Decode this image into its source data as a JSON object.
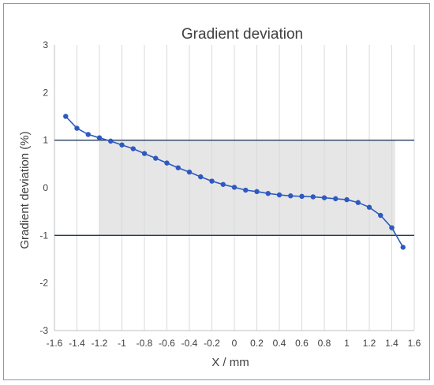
{
  "chart_data": {
    "type": "line",
    "title": "Gradient deviation",
    "xlabel": "X / mm",
    "ylabel": "Gradient deviation (%)",
    "xlim": [
      -1.6,
      1.6
    ],
    "ylim": [
      -3,
      3
    ],
    "x_ticks": [
      "-1.6",
      "-1.4",
      "-1.2",
      "-1",
      "-0.8",
      "-0.6",
      "-0.4",
      "-0.2",
      "0",
      "0.2",
      "0.4",
      "0.6",
      "0.8",
      "1",
      "1.2",
      "1.4",
      "1.6"
    ],
    "y_ticks": [
      "-3",
      "-2",
      "-1",
      "0",
      "1",
      "2",
      "3"
    ],
    "grid": "vertical",
    "legend": "none",
    "shaded_region": {
      "x": [
        -1.2,
        1.43
      ],
      "y": [
        -1,
        1
      ]
    },
    "reference_lines_y": [
      1,
      -1
    ],
    "series": [
      {
        "color": "#2e59c0",
        "x": [
          -1.5,
          -1.4,
          -1.3,
          -1.2,
          -1.1,
          -1.0,
          -0.9,
          -0.8,
          -0.7,
          -0.6,
          -0.5,
          -0.4,
          -0.3,
          -0.2,
          -0.1,
          0.0,
          0.1,
          0.2,
          0.3,
          0.4,
          0.5,
          0.6,
          0.7,
          0.8,
          0.9,
          1.0,
          1.1,
          1.2,
          1.3,
          1.4,
          1.5
        ],
        "y": [
          1.5,
          1.25,
          1.12,
          1.05,
          0.98,
          0.9,
          0.82,
          0.72,
          0.62,
          0.52,
          0.42,
          0.33,
          0.23,
          0.14,
          0.07,
          0.01,
          -0.05,
          -0.08,
          -0.12,
          -0.15,
          -0.17,
          -0.18,
          -0.19,
          -0.21,
          -0.23,
          -0.25,
          -0.31,
          -0.41,
          -0.58,
          -0.84,
          -1.25
        ]
      }
    ],
    "colors": {
      "line": "#2e59c0",
      "reference": "#1f3b5c",
      "shade": "#e6e6e6",
      "grid": "#d9d9d9"
    }
  }
}
